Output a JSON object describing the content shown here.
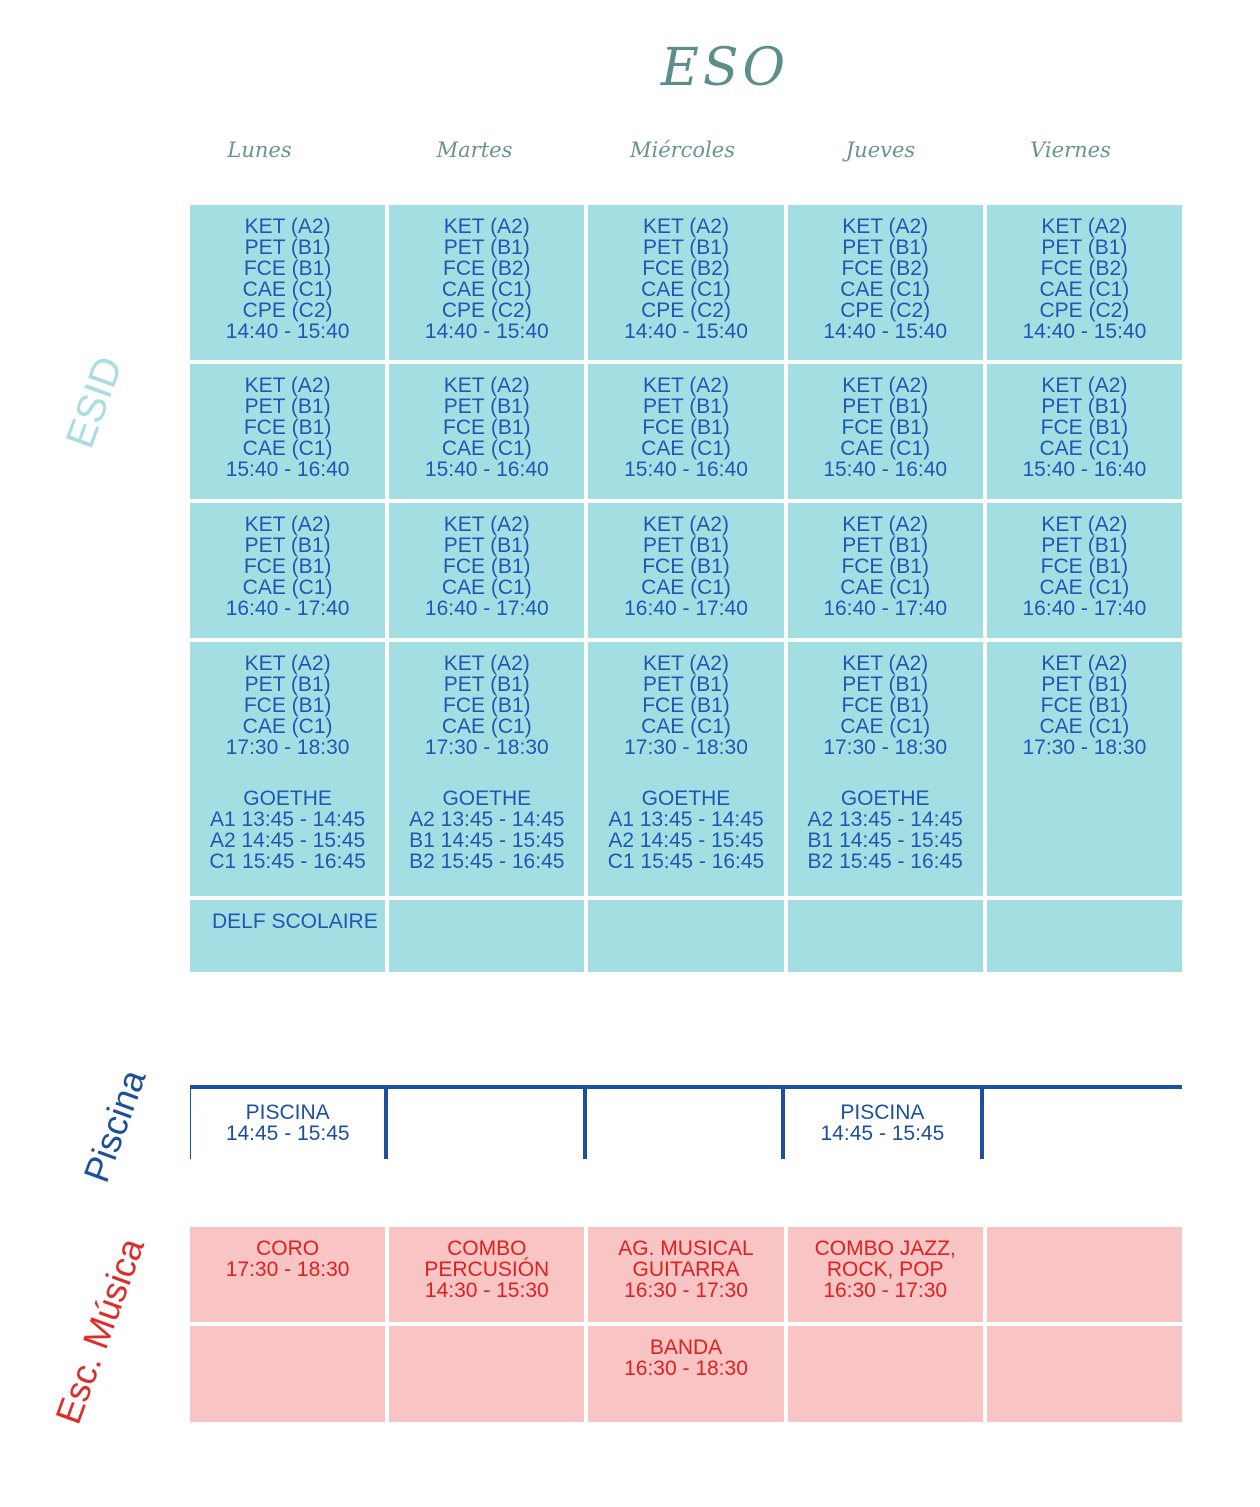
{
  "title": "ESO",
  "days": [
    "Lunes",
    "Martes",
    "Miércoles",
    "Jueves",
    "Viernes"
  ],
  "sections": {
    "esid": "ESID",
    "piscina": "Piscina",
    "musica": "Esc. Música"
  },
  "esid": {
    "rows": [
      [
        "KET (A2)\nPET (B1)\nFCE (B1)\nCAE (C1)\nCPE (C2)\n14:40 - 15:40",
        "KET (A2)\nPET (B1)\nFCE (B2)\nCAE (C1)\nCPE (C2)\n14:40 - 15:40",
        "KET (A2)\nPET (B1)\nFCE (B2)\nCAE (C1)\nCPE (C2)\n14:40 - 15:40",
        "KET (A2)\nPET (B1)\nFCE (B2)\nCAE (C1)\nCPE (C2)\n14:40 - 15:40",
        "KET (A2)\nPET (B1)\nFCE (B2)\nCAE (C1)\nCPE (C2)\n14:40 - 15:40"
      ],
      [
        "KET (A2)\nPET (B1)\nFCE (B1)\nCAE (C1)\n15:40 - 16:40",
        "KET (A2)\nPET (B1)\nFCE (B1)\nCAE (C1)\n15:40 - 16:40",
        "KET (A2)\nPET (B1)\nFCE (B1)\nCAE (C1)\n15:40 - 16:40",
        "KET (A2)\nPET (B1)\nFCE (B1)\nCAE (C1)\n15:40 - 16:40",
        "KET (A2)\nPET (B1)\nFCE (B1)\nCAE (C1)\n15:40 - 16:40"
      ],
      [
        "KET (A2)\nPET (B1)\nFCE (B1)\nCAE (C1)\n16:40 - 17:40",
        "KET (A2)\nPET (B1)\nFCE (B1)\nCAE (C1)\n16:40 - 17:40",
        "KET (A2)\nPET (B1)\nFCE (B1)\nCAE (C1)\n16:40 - 17:40",
        "KET (A2)\nPET (B1)\nFCE (B1)\nCAE (C1)\n16:40 - 17:40",
        "KET (A2)\nPET (B1)\nFCE (B1)\nCAE (C1)\n16:40 - 17:40"
      ],
      [
        "KET (A2)\nPET (B1)\nFCE (B1)\nCAE (C1)\n17:30 - 18:30",
        "KET (A2)\nPET (B1)\nFCE (B1)\nCAE (C1)\n17:30 - 18:30",
        "KET (A2)\nPET (B1)\nFCE (B1)\nCAE (C1)\n17:30 - 18:30",
        "KET (A2)\nPET (B1)\nFCE (B1)\nCAE (C1)\n17:30 - 18:30",
        "KET (A2)\nPET (B1)\nFCE (B1)\nCAE (C1)\n17:30 - 18:30"
      ],
      [
        "GOETHE\nA1 13:45 - 14:45\nA2 14:45 - 15:45\nC1 15:45 - 16:45",
        "GOETHE\nA2 13:45 - 14:45\nB1 14:45 - 15:45\nB2 15:45 - 16:45",
        "GOETHE\nA1 13:45 - 14:45\nA2 14:45 - 15:45\nC1 15:45 - 16:45",
        "GOETHE\nA2 13:45 - 14:45\nB1 14:45 - 15:45\nB2 15:45 - 16:45",
        ""
      ],
      [
        "DELF SCOLAIRE",
        "",
        "",
        "",
        ""
      ]
    ]
  },
  "piscina": {
    "cells": [
      "PISCINA\n14:45 - 15:45",
      "",
      "",
      "PISCINA\n14:45 - 15:45",
      ""
    ]
  },
  "musica": {
    "rows": [
      [
        "CORO\n17:30 - 18:30",
        "COMBO\nPERCUSIÓN\n14:30 - 15:30",
        "AG. MUSICAL\nGUITARRA\n16:30 - 17:30",
        "COMBO JAZZ,\nROCK, POP\n16:30 - 17:30",
        ""
      ],
      [
        "",
        "",
        "BANDA\n16:30 - 18:30",
        "",
        ""
      ]
    ]
  }
}
